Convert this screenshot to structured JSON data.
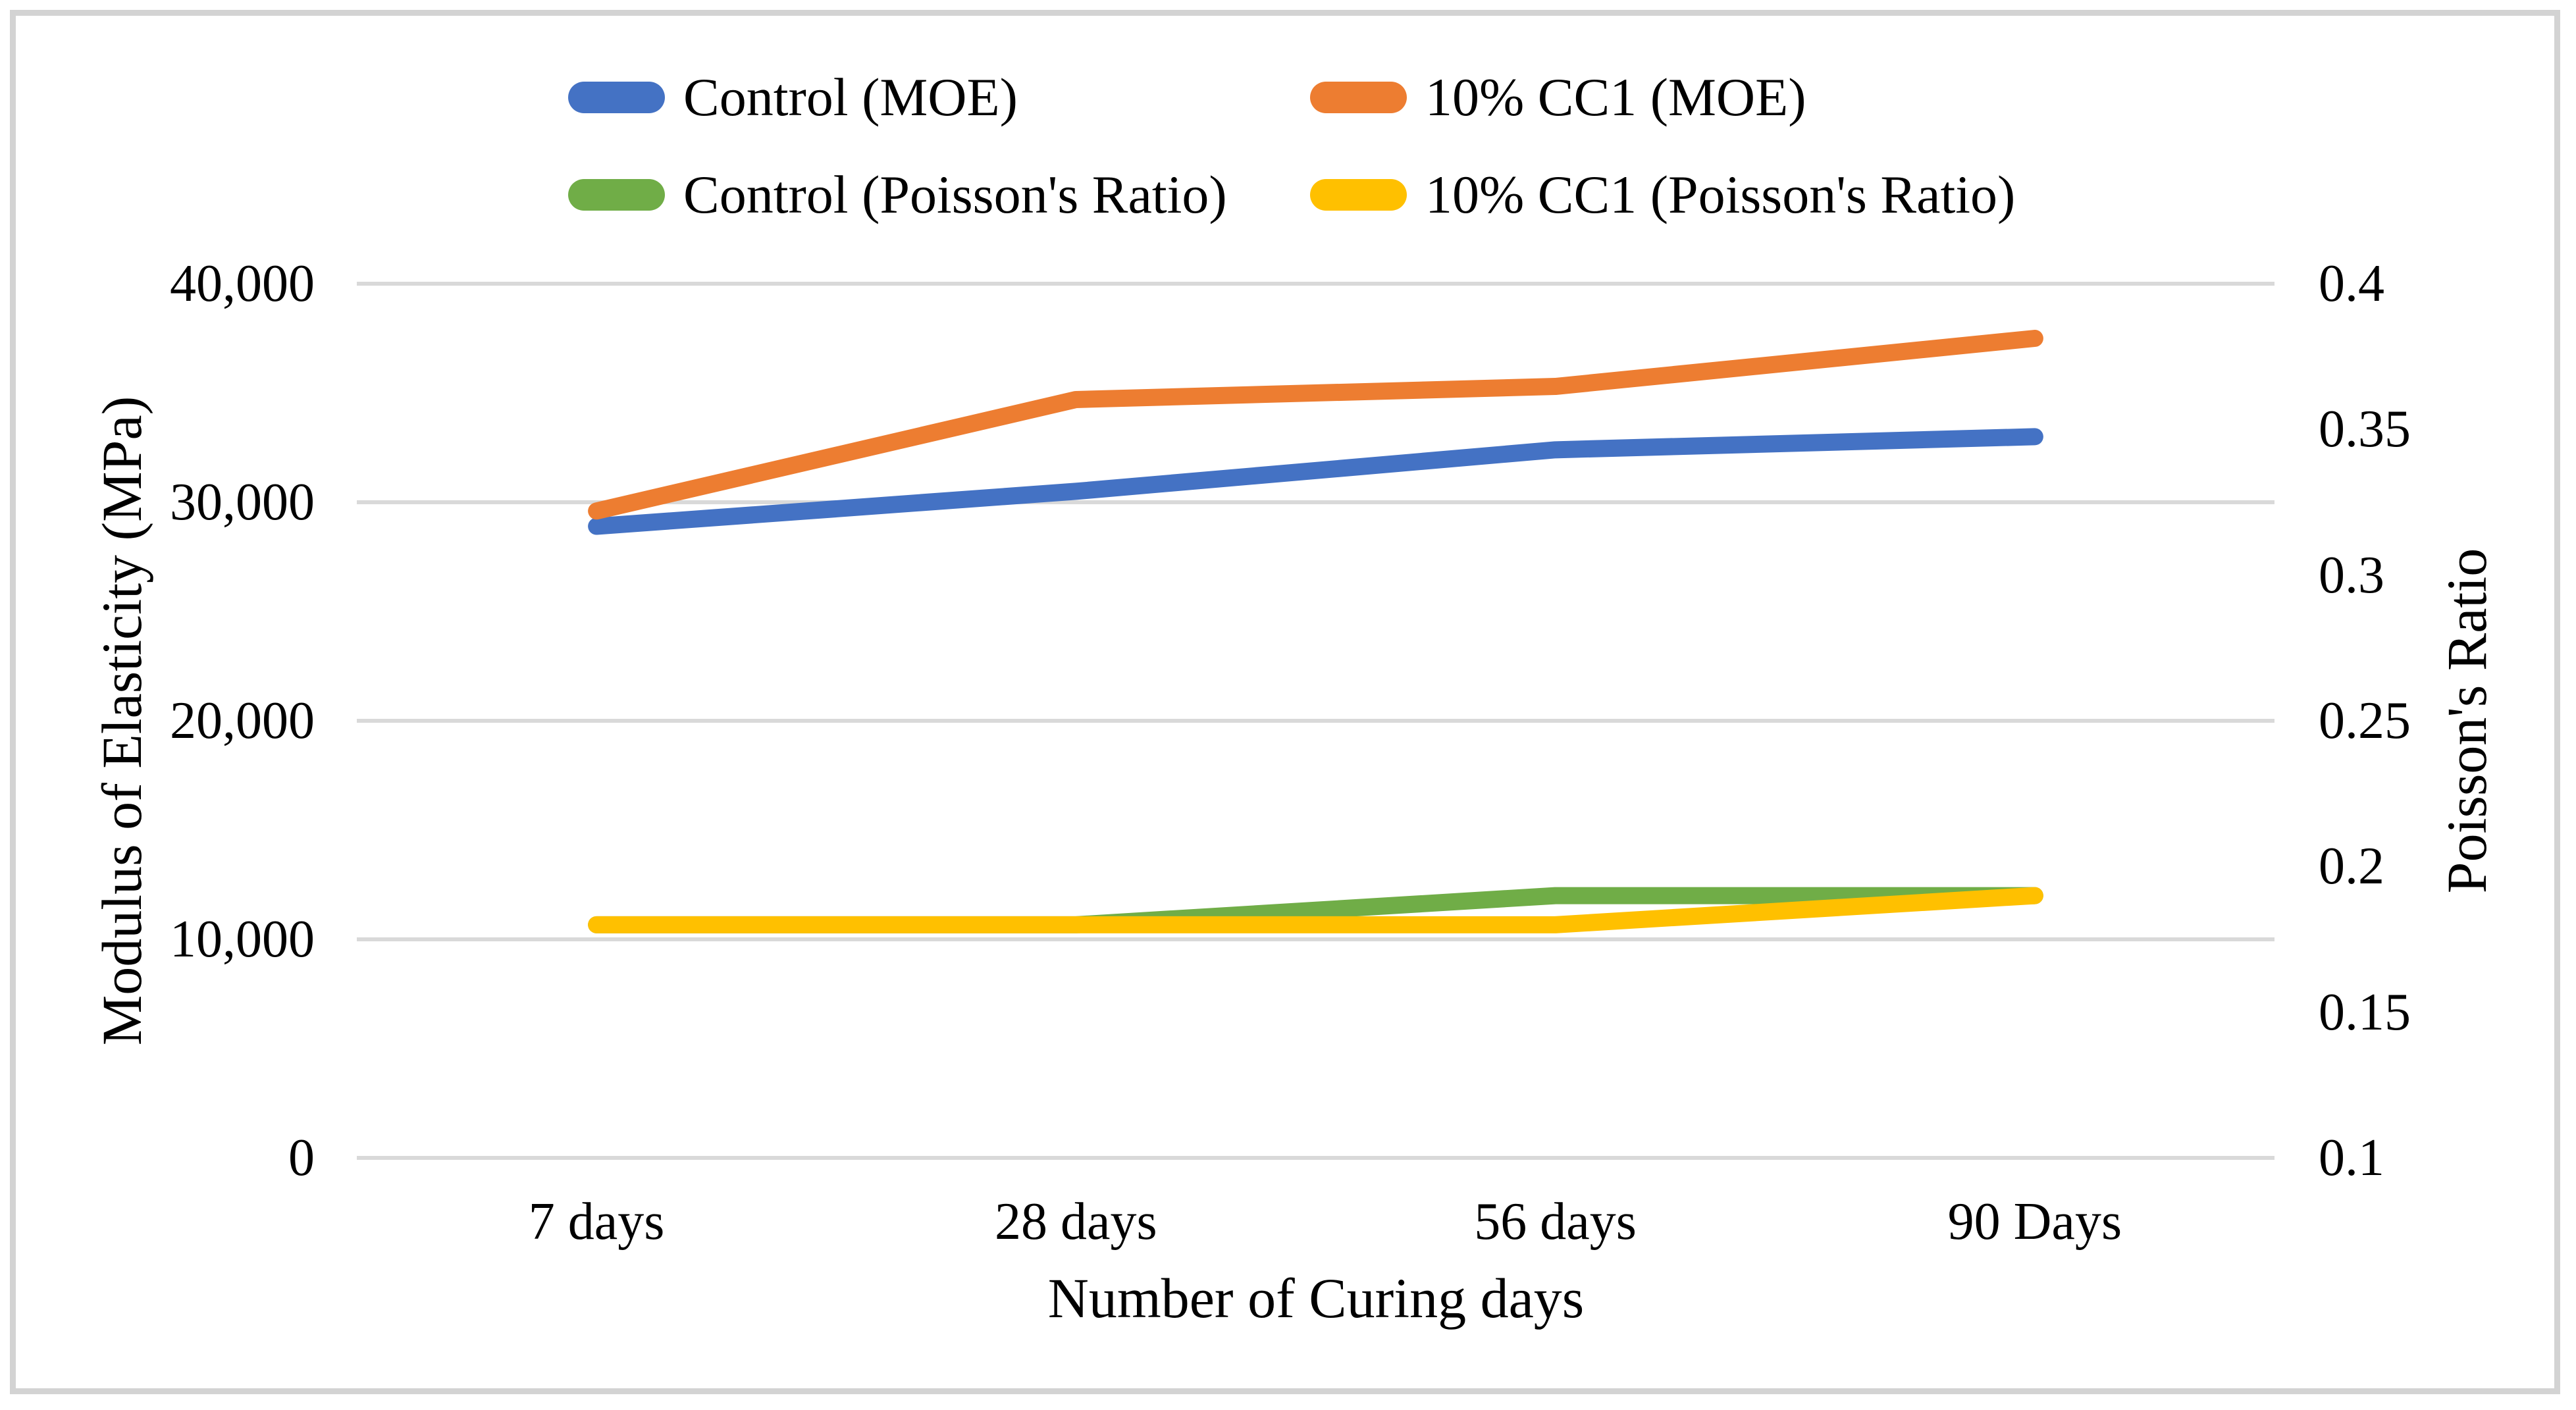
{
  "figure": {
    "background": "#ffffff",
    "border_color": "#d3d3d3",
    "gridline_color": "#d9d9d9",
    "text_color": "#000000"
  },
  "legend": {
    "items": [
      {
        "label": "Control (MOE)",
        "color": "#4472C4"
      },
      {
        "label": "10% CC1 (MOE)",
        "color": "#ED7D31"
      },
      {
        "label": "Control (Poisson's Ratio)",
        "color": "#70AD47"
      },
      {
        "label": "10% CC1 (Poisson's Ratio)",
        "color": "#FFC000"
      }
    ]
  },
  "chart_data": {
    "type": "line",
    "categories": [
      "7 days",
      "28 days",
      "56 days",
      "90 Days"
    ],
    "series": [
      {
        "name": "Control (MOE)",
        "axis": "left",
        "color": "#4472C4",
        "values": [
          28900,
          30500,
          32400,
          33000
        ]
      },
      {
        "name": "10% CC1 (MOE)",
        "axis": "left",
        "color": "#ED7D31",
        "values": [
          29600,
          34700,
          35300,
          37500
        ]
      },
      {
        "name": "Control (Poisson's Ratio)",
        "axis": "right",
        "color": "#70AD47",
        "values": [
          0.18,
          0.18,
          0.19,
          0.19
        ]
      },
      {
        "name": "10% CC1 (Poisson's Ratio)",
        "axis": "right",
        "color": "#FFC000",
        "values": [
          0.18,
          0.18,
          0.18,
          0.19
        ]
      }
    ],
    "xlabel": "Number of Curing days",
    "ylabel_left": "Modulus of Elasticity (MPa)",
    "ylabel_right": "Poisson's Ratio",
    "left_axis": {
      "min": 0,
      "max": 40000,
      "tick_values": [
        0,
        10000,
        20000,
        30000,
        40000
      ],
      "tick_labels": [
        "0",
        "10,000",
        "20,000",
        "30,000",
        "40,000"
      ]
    },
    "right_axis": {
      "min": 0.1,
      "max": 0.4,
      "tick_values": [
        0.1,
        0.15,
        0.2,
        0.25,
        0.3,
        0.35,
        0.4
      ],
      "tick_labels": [
        "0.1",
        "0.15",
        "0.2",
        "0.25",
        "0.3",
        "0.35",
        "0.4"
      ]
    },
    "grid": true,
    "legend_position": "top"
  }
}
